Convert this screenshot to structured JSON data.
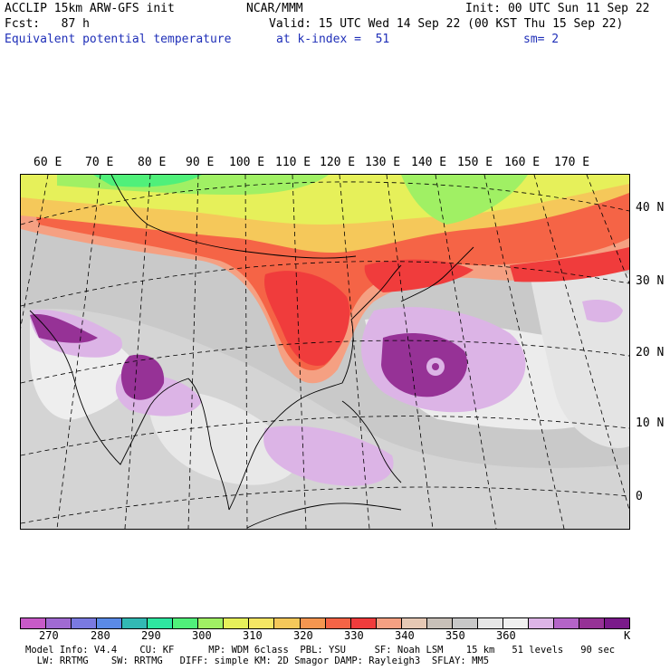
{
  "header": {
    "line1_left": "ACCLIP 15km ARW-GFS init",
    "line1_mid": "NCAR/MMM",
    "line1_right": "Init: 00 UTC Sun 11 Sep 22",
    "line2_left": "Fcst:   87 h",
    "line2_right": "Valid: 15 UTC Wed 14 Sep 22 (00 KST Thu 15 Sep 22)",
    "line3_left": "Equivalent potential temperature",
    "line3_mid": "at k-index =  51",
    "line3_right": "sm= 2"
  },
  "map": {
    "lon_labels": [
      "60 E",
      "70 E",
      "80 E",
      "90 E",
      "100 E",
      "110 E",
      "120 E",
      "130 E",
      "140 E",
      "150 E",
      "160 E",
      "170 E"
    ],
    "lat_labels": [
      "40 N",
      "30 N",
      "20 N",
      "10 N",
      "0"
    ]
  },
  "colorbar": {
    "unit": "K",
    "ticks": [
      "270",
      "280",
      "290",
      "300",
      "310",
      "320",
      "330",
      "340",
      "350",
      "360"
    ],
    "colors": [
      "#c85ac8",
      "#a06ad2",
      "#7a7ae0",
      "#5a8ae6",
      "#32b9b4",
      "#2ee6a0",
      "#50f07a",
      "#a0f064",
      "#e6f05a",
      "#f5e664",
      "#f5c85a",
      "#f59650",
      "#f56446",
      "#f03c3c",
      "#f5a082",
      "#e6c8b4",
      "#c8c0b8",
      "#c8c8c8",
      "#e6e6e6",
      "#f0f0f0",
      "#dcb4e6",
      "#b464c8",
      "#963296",
      "#7a1a8a"
    ]
  },
  "footer": {
    "line1": "Model Info: V4.4    CU: KF      MP: WDM 6class  PBL: YSU     SF: Noah LSM    15 km   51 levels   90 sec",
    "line2": "  LW: RRTMG    SW: RRTMG   DIFF: simple KM: 2D Smagor DAMP: Rayleigh3  SFLAY: MM5"
  }
}
